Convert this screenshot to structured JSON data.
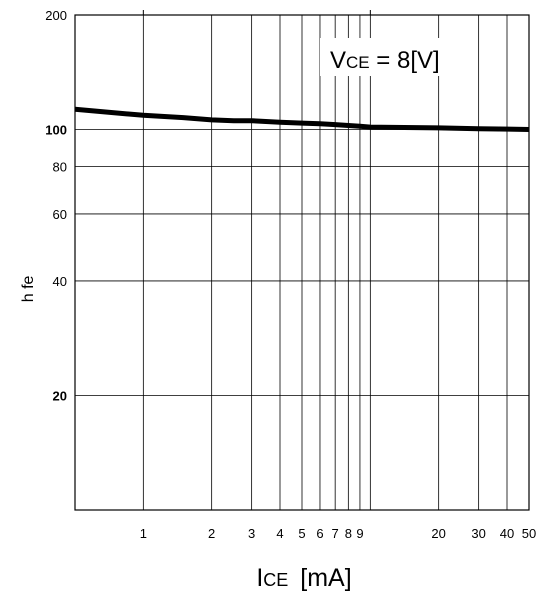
{
  "chart_data": {
    "type": "line",
    "title": "",
    "xlabel": {
      "main": "I",
      "sub": "CE",
      "unit": "[mA]"
    },
    "ylabel": "h fe",
    "annotation": {
      "main": "V",
      "sub": "CE",
      "rest": " = 8[V]"
    },
    "x_scale": "log",
    "y_scale": "log",
    "xlim": [
      0.5,
      50
    ],
    "ylim": [
      10,
      200
    ],
    "grid": true,
    "x_ticks": [
      1,
      2,
      3,
      4,
      5,
      6,
      7,
      8,
      9,
      20,
      30,
      40,
      50
    ],
    "x_tick_labels": [
      "1",
      "2",
      "3",
      "4",
      "5",
      "6",
      "7",
      "8",
      "9",
      "20",
      "30",
      "40",
      "50"
    ],
    "y_ticks": [
      200,
      100,
      80,
      60,
      40,
      20
    ],
    "y_tick_labels": [
      "200",
      "100",
      "80",
      "60",
      "40",
      "20"
    ],
    "series": [
      {
        "x": [
          0.5,
          1,
          1.5,
          2,
          2.5,
          3,
          4,
          5,
          6,
          7,
          8,
          9,
          10,
          20,
          30,
          50
        ],
        "y": [
          113,
          109,
          107.5,
          106,
          105.5,
          105.5,
          104.5,
          104,
          103.5,
          103,
          102.5,
          102,
          101.5,
          101,
          100.5,
          100
        ]
      }
    ]
  }
}
